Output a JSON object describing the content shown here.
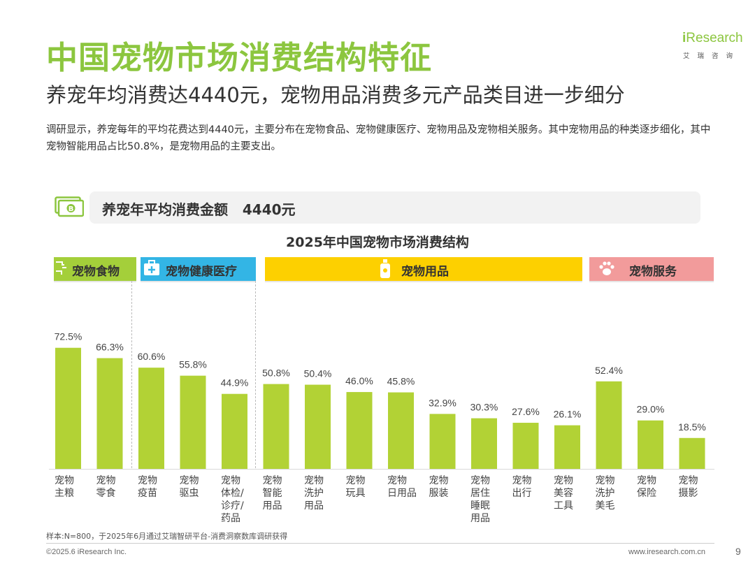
{
  "header": {
    "title": "中国宠物市场消费结构特征",
    "subtitle": "养宠年均消费达4440元，宠物用品消费多元产品类目进一步细分",
    "description": "调研显示，养宠每年的平均花费达到4440元，主要分布在宠物食品、宠物健康医疗、宠物用品及宠物相关服务。其中宠物用品的种类逐步细化，其中宠物智能用品占比50.8%，是宠物用品的主要支出。"
  },
  "logo": {
    "i": "i",
    "word": "Research",
    "cn": "艾瑞咨询",
    "color": "#8cc63f"
  },
  "summary": {
    "label": "养宠年平均消费金额",
    "value": "4440元",
    "icon": "money-icon"
  },
  "categories": [
    {
      "label": "宠物食物",
      "color": "#a4cf3a",
      "icon": "food-icon"
    },
    {
      "label": "宠物健康医疗",
      "color": "#33b5e5",
      "icon": "medical-kit-icon"
    },
    {
      "label": "宠物用品",
      "color": "#fdd000",
      "icon": "shampoo-bottle-icon"
    },
    {
      "label": "宠物服务",
      "color": "#f29b9b",
      "icon": "paw-icon"
    }
  ],
  "chart_data": {
    "type": "bar",
    "title": "2025年中国宠物市场消费结构",
    "categories": [
      "宠物\n主粮",
      "宠物\n零食",
      "宠物\n疫苗",
      "宠物\n驱虫",
      "宠物\n体检/\n诊疗/\n药品",
      "宠物\n智能\n用品",
      "宠物\n洗护\n用品",
      "宠物\n玩具",
      "宠物\n日用品",
      "宠物\n服装",
      "宠物\n居住\n睡眠\n用品",
      "宠物\n出行",
      "宠物\n美容\n工具",
      "宠物\n洗护\n美毛",
      "宠物\n保险",
      "宠物\n摄影"
    ],
    "values": [
      72.5,
      66.3,
      60.6,
      55.8,
      44.9,
      50.8,
      50.4,
      46.0,
      45.8,
      32.9,
      30.3,
      27.6,
      26.1,
      52.4,
      29.0,
      18.5
    ],
    "value_labels": [
      "72.5%",
      "66.3%",
      "60.6%",
      "55.8%",
      "44.9%",
      "50.8%",
      "50.4%",
      "46.0%",
      "45.8%",
      "32.9%",
      "30.3%",
      "27.6%",
      "26.1%",
      "52.4%",
      "29.0%",
      "18.5%"
    ],
    "groups": [
      "宠物食物",
      "宠物食物",
      "宠物健康医疗",
      "宠物健康医疗",
      "宠物健康医疗",
      "宠物用品",
      "宠物用品",
      "宠物用品",
      "宠物用品",
      "宠物用品",
      "宠物用品",
      "宠物用品",
      "宠物用品",
      "宠物服务",
      "宠物服务",
      "宠物服务"
    ],
    "unit": "%",
    "bar_color": "#b2d235",
    "ylim": [
      0,
      100
    ],
    "grid": false,
    "legend": "none"
  },
  "footer": {
    "source": "样本:N=800，于2025年6月通过艾瑞智研平台-消费洞察数库调研获得",
    "copyright": "©2025.6 iResearch Inc.",
    "website": "www.iresearch.com.cn",
    "page": "9"
  }
}
